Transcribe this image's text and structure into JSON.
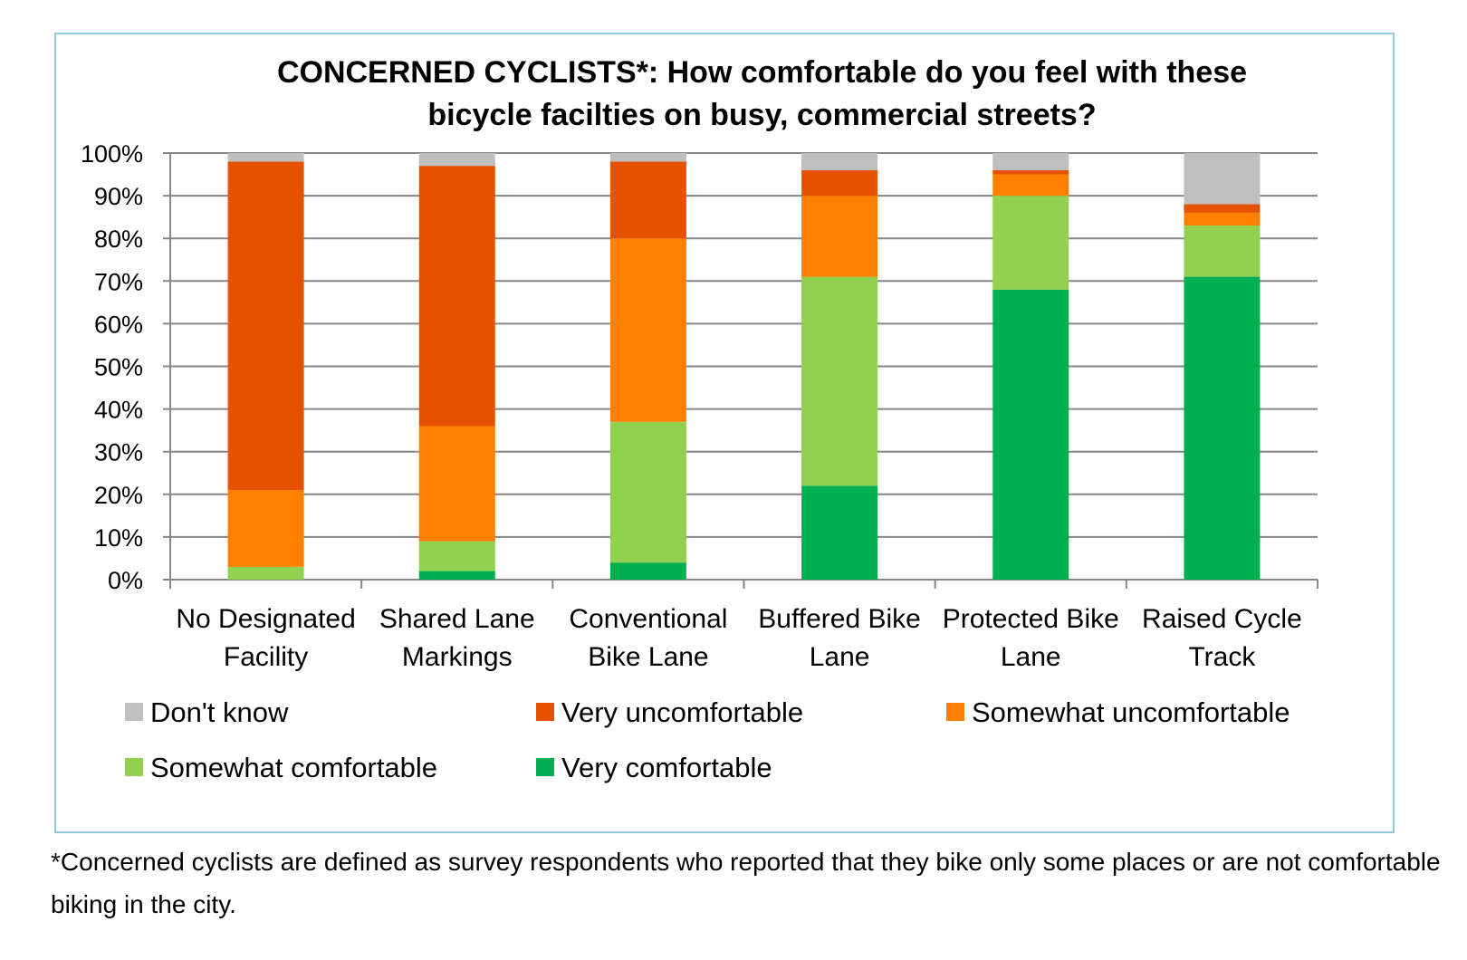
{
  "chart_data": {
    "type": "bar",
    "stacked": true,
    "title": "CONCERNED CYCLISTS*: How comfortable do you feel with these bicycle facilties on busy, commercial streets?",
    "title_lines": [
      "CONCERNED CYCLISTS*: How comfortable do you feel with these",
      "bicycle facilties on busy, commercial streets?"
    ],
    "categories": [
      "No Designated Facility",
      "Shared Lane Markings",
      "Conventional Bike Lane",
      "Buffered Bike Lane",
      "Protected Bike Lane",
      "Raised Cycle Track"
    ],
    "category_lines": [
      [
        "No Designated",
        "Facility"
      ],
      [
        "Shared Lane",
        "Markings"
      ],
      [
        "Conventional",
        "Bike Lane"
      ],
      [
        "Buffered Bike",
        "Lane"
      ],
      [
        "Protected Bike",
        "Lane"
      ],
      [
        "Raised Cycle",
        "Track"
      ]
    ],
    "series": [
      {
        "name": "Very comfortable",
        "color": "#00b050",
        "values": [
          0,
          2,
          4,
          22,
          68,
          71
        ]
      },
      {
        "name": "Somewhat comfortable",
        "color": "#92d050",
        "values": [
          3,
          7,
          33,
          49,
          22,
          12
        ]
      },
      {
        "name": "Somewhat uncomfortable",
        "color": "#ff7f00",
        "values": [
          18,
          27,
          43,
          19,
          5,
          3
        ]
      },
      {
        "name": "Very uncomfortable",
        "color": "#e65100",
        "values": [
          77,
          61,
          18,
          6,
          1,
          2
        ]
      },
      {
        "name": "Don't know",
        "color": "#bfbfbf",
        "values": [
          2,
          3,
          2,
          4,
          4,
          12
        ]
      }
    ],
    "legend_order": [
      "Don't know",
      "Very uncomfortable",
      "Somewhat uncomfortable",
      "Somewhat comfortable",
      "Very comfortable"
    ],
    "legend_position": "bottom",
    "ylim": [
      0,
      100
    ],
    "yticks": [
      "0%",
      "10%",
      "20%",
      "30%",
      "40%",
      "50%",
      "60%",
      "70%",
      "80%",
      "90%",
      "100%"
    ],
    "grid": true,
    "xlabel": "",
    "ylabel": ""
  },
  "footnote": "*Concerned cyclists are defined as survey respondents who reported that they bike only some places or are not comfortable biking in the city."
}
